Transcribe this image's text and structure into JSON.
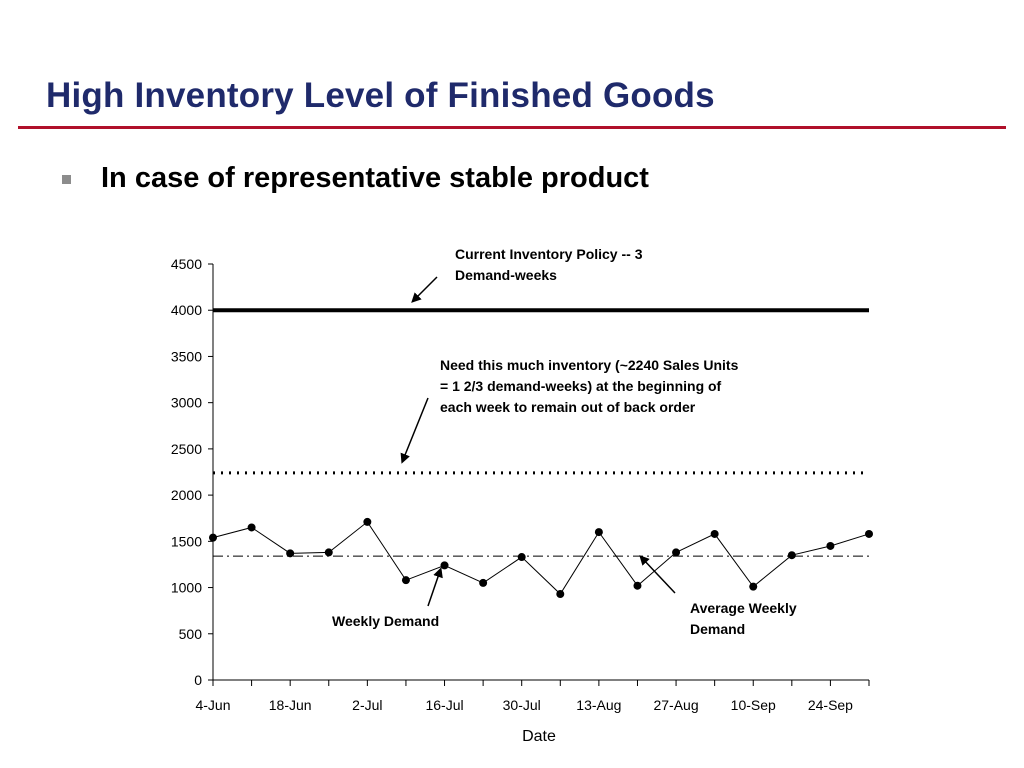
{
  "slide": {
    "title": "High Inventory Level of Finished Goods",
    "bullet": "In case of representative stable product",
    "colors": {
      "title": "#1f2a6b",
      "rule": "#b0102a",
      "bullet_marker": "#8c8c8c"
    },
    "icons": {
      "bullet": "square-bullet-icon"
    }
  },
  "chart_data": {
    "type": "line",
    "title": "",
    "xlabel": "Date",
    "ylabel": "",
    "ylim": [
      0,
      4500
    ],
    "yticks": [
      0,
      500,
      1000,
      1500,
      2000,
      2500,
      3000,
      3500,
      4000,
      4500
    ],
    "x_tick_labels": [
      "4-Jun",
      "18-Jun",
      "2-Jul",
      "16-Jul",
      "30-Jul",
      "13-Aug",
      "27-Aug",
      "10-Sep",
      "24-Sep"
    ],
    "grid": false,
    "series": [
      {
        "name": "Weekly Demand",
        "style": "solid line with markers",
        "x": [
          "4-Jun",
          "11-Jun",
          "18-Jun",
          "25-Jun",
          "2-Jul",
          "9-Jul",
          "16-Jul",
          "23-Jul",
          "30-Jul",
          "6-Aug",
          "13-Aug",
          "20-Aug",
          "27-Aug",
          "3-Sep",
          "10-Sep",
          "17-Sep",
          "24-Sep",
          "1-Oct"
        ],
        "values": [
          1540,
          1650,
          1370,
          1380,
          1710,
          1080,
          1240,
          1050,
          1330,
          930,
          1600,
          1020,
          1380,
          1580,
          1010,
          1350,
          1450,
          1580
        ]
      },
      {
        "name": "Current Inventory Policy -- 3 Demand-weeks",
        "style": "thick solid line",
        "constant": 4000
      },
      {
        "name": "Need this much inventory",
        "style": "dotted line",
        "constant": 2240
      },
      {
        "name": "Average Weekly Demand",
        "style": "dash-dot line",
        "constant": 1340
      }
    ],
    "annotations": {
      "policy": [
        "Current Inventory Policy -- 3",
        "Demand-weeks"
      ],
      "need": [
        "Need this much inventory  (~2240 Sales Units",
        "= 1 2/3 demand-weeks) at the beginning of",
        "each week to remain out of back order"
      ],
      "weekly": [
        "Weekly Demand"
      ],
      "average": [
        "Average Weekly",
        "Demand"
      ]
    }
  }
}
